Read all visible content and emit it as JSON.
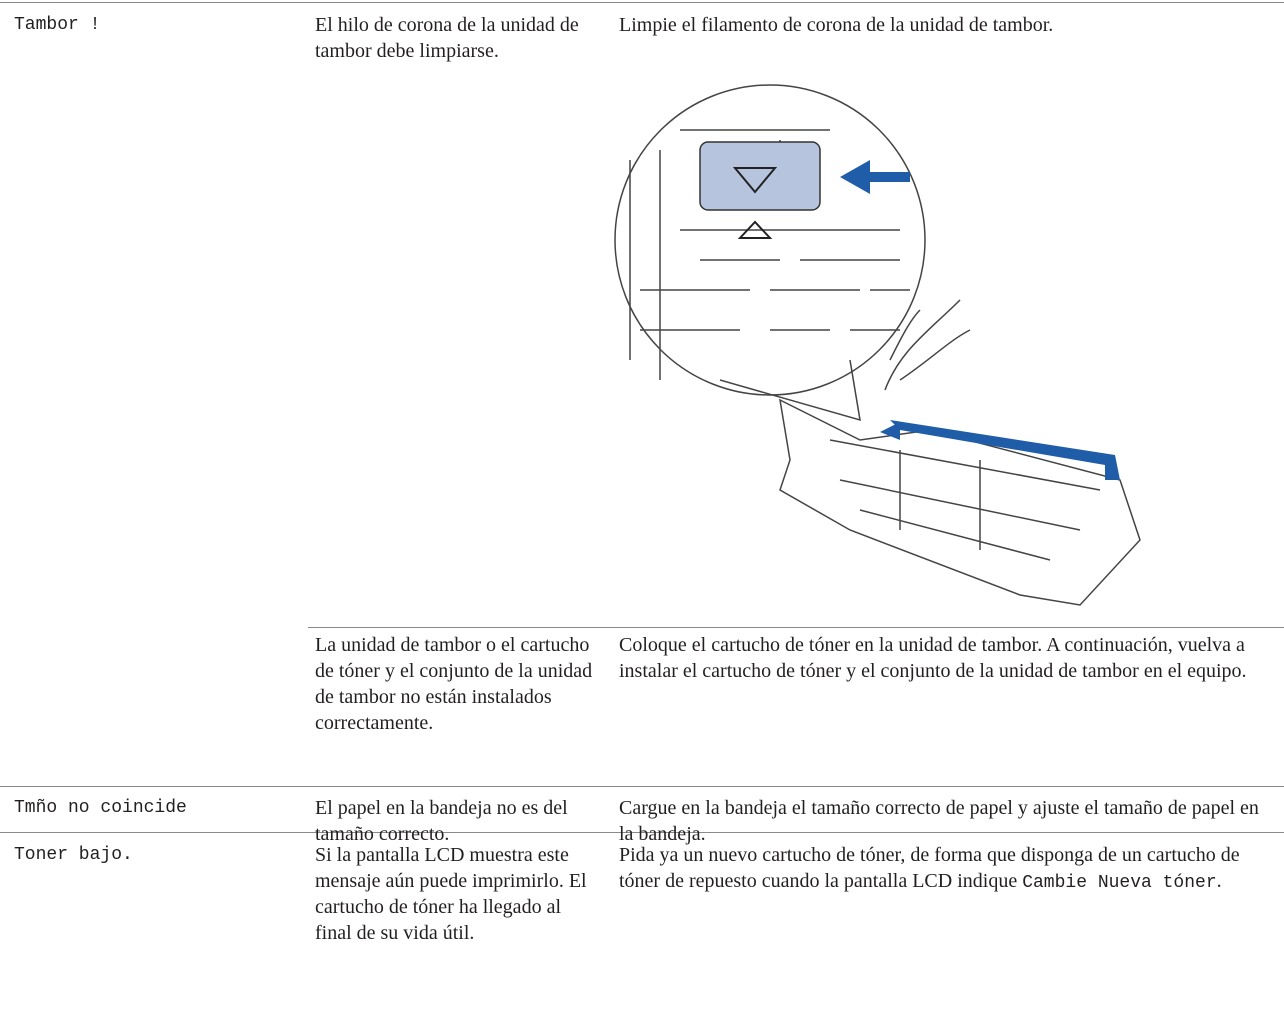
{
  "table": {
    "rows": [
      {
        "message": "Tambor !",
        "entries": [
          {
            "cause": "El hilo de corona de la unidad de tambor debe limpiarse.",
            "remedy": "Limpie el filamento de corona de la unidad de tambor."
          },
          {
            "cause": "La unidad de tambor o el cartucho de tóner y el conjunto de la unidad de tambor no están instalados correctamente.",
            "remedy": "Coloque el cartucho de tóner en la unidad de tambor. A continuación, vuelva a instalar el cartucho de tóner y el conjunto de la unidad de tambor en el equipo."
          }
        ]
      },
      {
        "message": "Tmño no coincide",
        "cause": "El papel en la bandeja no es del tamaño correcto.",
        "remedy": "Cargue en la bandeja el tamaño correcto de papel y ajuste el tamaño de papel en la bandeja."
      },
      {
        "message": "Toner bajo.",
        "cause": "Si la pantalla LCD muestra este mensaje aún puede imprimirlo. El cartucho de tóner ha llegado al final de su vida útil.",
        "remedy": {
          "text": "Pida ya un nuevo cartucho de tóner, de forma que disponga de un cartucho de tóner de repuesto cuando la pantalla LCD indique ",
          "code": "Cambie Nueva tóner",
          "end": "."
        }
      }
    ]
  }
}
